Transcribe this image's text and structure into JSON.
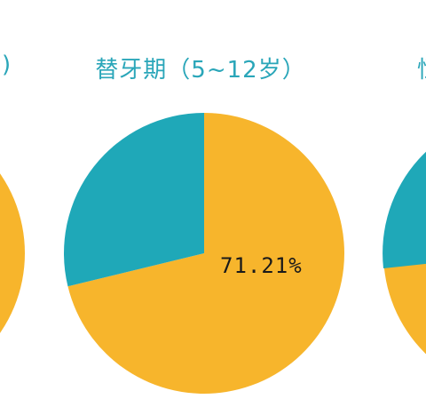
{
  "colors": {
    "teal": "#1fa8b8",
    "orange": "#f7b52c",
    "title": "#2aa6b9"
  },
  "titles": {
    "left_partial": ")",
    "center": "替牙期（5~12岁）",
    "right_partial": "恒"
  },
  "chart_data": [
    {
      "type": "pie",
      "title": "替牙期（5~12岁）",
      "slices": [
        {
          "label": "71.21%",
          "value": 71.21,
          "color": "#f7b52c"
        },
        {
          "label": "",
          "value": 28.79,
          "color": "#1fa8b8"
        }
      ],
      "data_label": "71.21%"
    }
  ]
}
